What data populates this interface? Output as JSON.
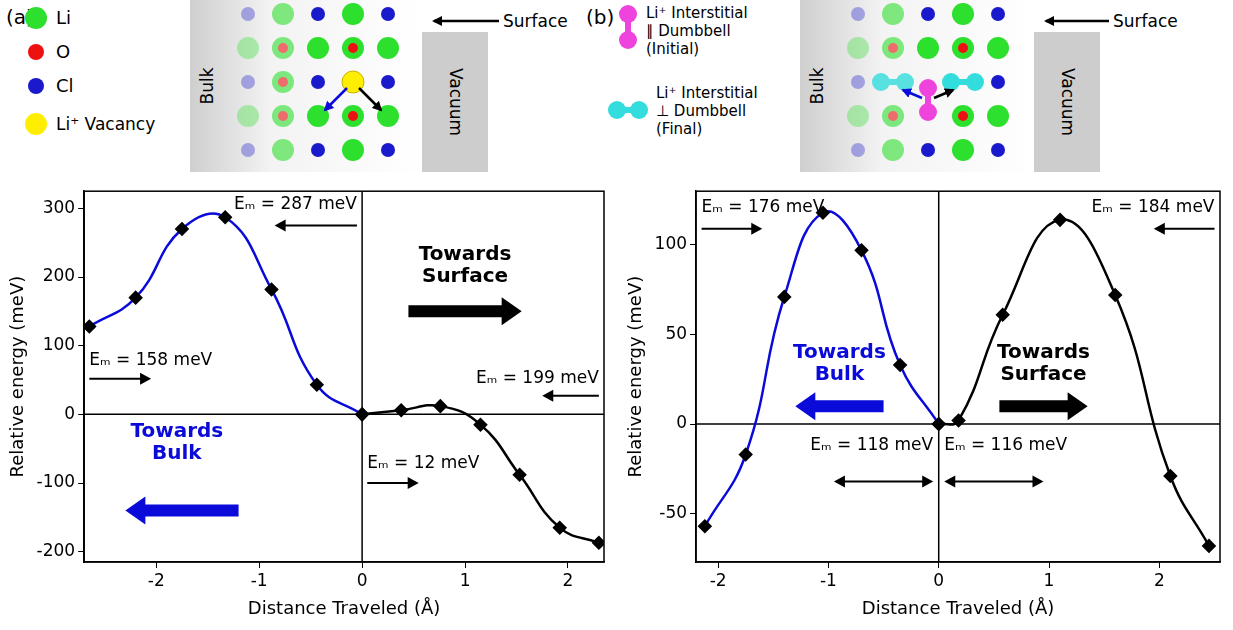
{
  "chart_data": [
    {
      "type": "line",
      "x_label": "Distance Traveled (Å)",
      "y_label": "Relative energy (meV)",
      "xlim": [
        -2.7,
        2.35
      ],
      "xticks": [
        -2,
        -1,
        0,
        1,
        2
      ],
      "ylim": [
        -215,
        325
      ],
      "yticks": [
        -200,
        -100,
        0,
        100,
        200,
        300
      ],
      "grid": false,
      "marker": "diamond",
      "reference_lines": {
        "x": 0,
        "y": 0
      },
      "series": [
        {
          "color": "#0b0bd9",
          "x": [
            -2.65,
            -2.2,
            -1.75,
            -1.33,
            -0.88,
            -0.44,
            0
          ],
          "values": [
            128,
            170,
            270,
            287,
            182,
            43,
            0
          ]
        },
        {
          "color": "#000000",
          "x": [
            0,
            0.38,
            0.76,
            1.15,
            1.53,
            1.92,
            2.3
          ],
          "values": [
            0,
            6,
            12,
            -15,
            -88,
            -165,
            -187
          ]
        }
      ],
      "annotations": [
        {
          "text": "Eₘ = 287 meV",
          "color": "#000000"
        },
        {
          "text": "Eₘ = 158 meV",
          "color": "#000000"
        },
        {
          "text": "Towards Surface",
          "color": "#000000"
        },
        {
          "text": "Eₘ = 199 meV",
          "color": "#000000"
        },
        {
          "text": "Towards Bulk",
          "color": "#0b0bd9"
        },
        {
          "text": "Eₘ = 12 meV",
          "color": "#000000"
        }
      ]
    },
    {
      "type": "line",
      "x_label": "Distance Traveled (Å)",
      "y_label": "Relative energy (meV)",
      "xlim": [
        -2.2,
        2.55
      ],
      "xticks": [
        -2,
        -1,
        0,
        1,
        2
      ],
      "ylim": [
        -77,
        130
      ],
      "yticks": [
        -50,
        0,
        50,
        100
      ],
      "grid": false,
      "marker": "diamond",
      "reference_lines": {
        "x": 0,
        "y": 0
      },
      "series": [
        {
          "color": "#0b0bd9",
          "x": [
            -2.12,
            -1.75,
            -1.4,
            -1.05,
            -0.7,
            -0.35,
            0
          ],
          "values": [
            -57,
            -17,
            71,
            118,
            97,
            33,
            0
          ]
        },
        {
          "color": "#000000",
          "x": [
            0,
            0.18,
            0.58,
            1.1,
            1.6,
            2.1,
            2.45
          ],
          "values": [
            0,
            2,
            61,
            114,
            72,
            -29,
            -68
          ]
        }
      ],
      "annotations": [
        {
          "text": "Eₘ = 176 meV",
          "color": "#000000"
        },
        {
          "text": "Eₘ = 184 meV",
          "color": "#000000"
        },
        {
          "text": "Towards Bulk",
          "color": "#0b0bd9"
        },
        {
          "text": "Towards Surface",
          "color": "#000000"
        },
        {
          "text": "Eₘ = 118 meV",
          "color": "#000000"
        },
        {
          "text": "Eₘ = 116 meV",
          "color": "#000000"
        }
      ]
    }
  ],
  "schematics": [
    {
      "panel": "(a)",
      "key": [
        {
          "label": "Li",
          "color": "#2ee02e"
        },
        {
          "label": "O",
          "color": "#ee1111"
        },
        {
          "label": "Cl",
          "color": "#1a1acc"
        },
        {
          "label": "Li⁺ Vacancy",
          "color": "#ffee00"
        }
      ],
      "bulk": "Bulk",
      "vacuum": "Vacuum",
      "surface": "Surface"
    },
    {
      "panel": "(b)",
      "key": [
        {
          "label": "Li⁺ Interstitial ∥ Dumbbell (Initial)",
          "color": "#ee44dd"
        },
        {
          "label": "Li⁺ Interstitial ⊥ Dumbbell (Final)",
          "color": "#33dddd"
        }
      ],
      "bulk": "Bulk",
      "vacuum": "Vacuum",
      "surface": "Surface"
    }
  ]
}
